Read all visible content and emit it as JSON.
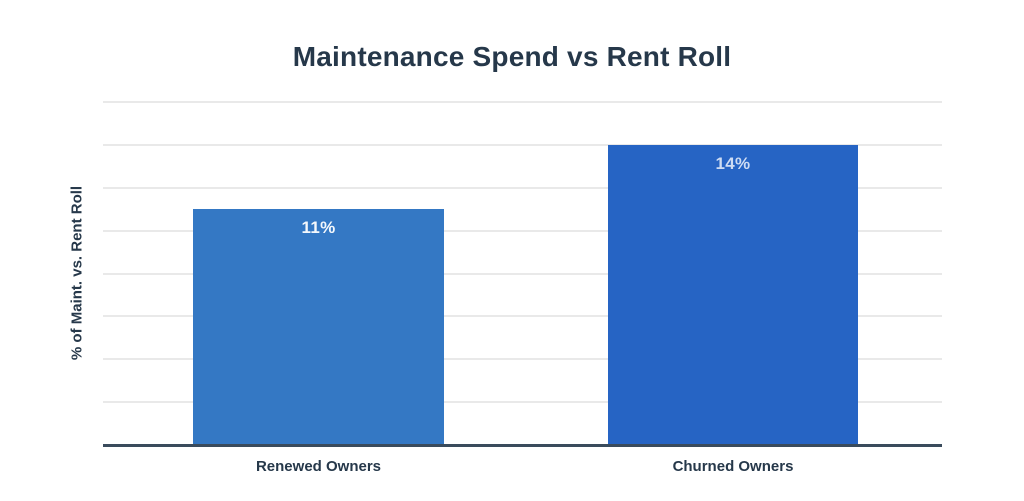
{
  "chart_data": {
    "type": "bar",
    "title": "Maintenance Spend vs Rent Roll",
    "ylabel": "% of Maint. vs. Rent Roll",
    "xlabel": "",
    "categories": [
      "Renewed Owners",
      "Churned Owners"
    ],
    "values": [
      11,
      14
    ],
    "value_labels": [
      "11%",
      "14%"
    ],
    "ylim": [
      0,
      16
    ],
    "gridline_step": 2,
    "grid": true,
    "legend": false,
    "bar_colors": [
      "#3478C4",
      "#2664C4"
    ],
    "value_label_colors": [
      "#F4F8FC",
      "#CEDCF3"
    ]
  },
  "colors": {
    "background": "#FFFFFF",
    "text": "#26384A",
    "gridline": "#E9E9E9",
    "axis_line": "#3A4B5C"
  }
}
